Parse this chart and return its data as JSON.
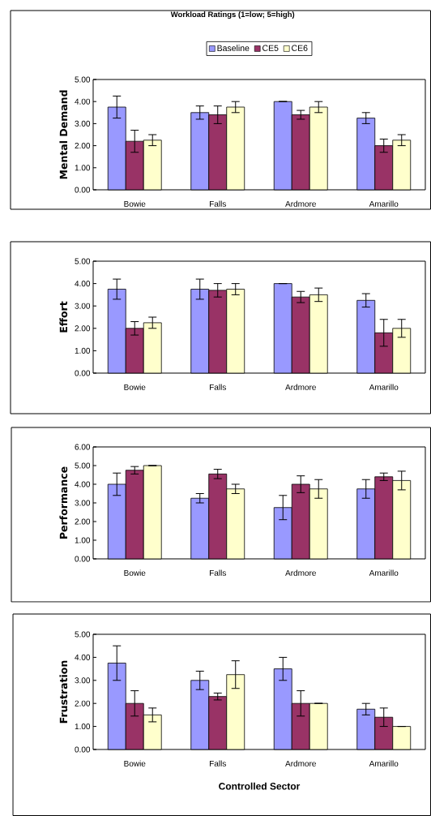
{
  "chart_data": [
    {
      "type": "bar",
      "title": "Workload Ratings (1=low; 5=high)",
      "ylabel": "Mental Demand",
      "categories": [
        "Bowie",
        "Falls",
        "Ardmore",
        "Amarillo"
      ],
      "legend": "top",
      "ylim": [
        0,
        5
      ],
      "yticks": [
        {
          "value": 0,
          "label": "0.00"
        },
        {
          "value": 1,
          "label": "1.00"
        },
        {
          "value": 2,
          "label": "2.00"
        },
        {
          "value": 3,
          "label": "3.00"
        },
        {
          "value": 4,
          "label": "4.00"
        },
        {
          "value": 5,
          "label": "5.00"
        }
      ],
      "series": [
        {
          "name": "Baseline",
          "color": "#9999ff",
          "values": [
            3.75,
            3.5,
            4.0,
            3.25
          ],
          "errors": [
            0.5,
            0.3,
            0,
            0.25
          ]
        },
        {
          "name": "CE5",
          "color": "#993366",
          "values": [
            2.2,
            3.4,
            3.4,
            2.0
          ],
          "errors": [
            0.5,
            0.4,
            0.2,
            0.3
          ]
        },
        {
          "name": "CE6",
          "color": "#ffffcc",
          "values": [
            2.25,
            3.75,
            3.75,
            2.25
          ],
          "errors": [
            0.25,
            0.25,
            0.25,
            0.25
          ]
        }
      ]
    },
    {
      "type": "bar",
      "ylabel": "Effort",
      "categories": [
        "Bowie",
        "Falls",
        "Ardmore",
        "Amarillo"
      ],
      "ylim": [
        0,
        5
      ],
      "yticks": [
        {
          "value": 0,
          "label": "0.00"
        },
        {
          "value": 1,
          "label": "1.00"
        },
        {
          "value": 2,
          "label": "2.00"
        },
        {
          "value": 3,
          "label": "3.00"
        },
        {
          "value": 4,
          "label": "4.00"
        },
        {
          "value": 5,
          "label": "5.00"
        }
      ],
      "series": [
        {
          "color": "#9999ff",
          "values": [
            3.75,
            3.75,
            4.0,
            3.25
          ],
          "errors": [
            0.45,
            0.45,
            0,
            0.3
          ]
        },
        {
          "color": "#993366",
          "values": [
            2.0,
            3.7,
            3.4,
            1.8
          ],
          "errors": [
            0.3,
            0.3,
            0.25,
            0.6
          ]
        },
        {
          "color": "#ffffcc",
          "values": [
            2.25,
            3.75,
            3.5,
            2.0
          ],
          "errors": [
            0.25,
            0.25,
            0.3,
            0.4
          ]
        }
      ]
    },
    {
      "type": "bar",
      "ylabel": "Performance",
      "categories": [
        "Bowie",
        "Falls",
        "Ardmore",
        "Amarillo"
      ],
      "ylim": [
        0,
        6
      ],
      "yticks": [
        {
          "value": 0,
          "label": "0.00"
        },
        {
          "value": 1,
          "label": "1.00"
        },
        {
          "value": 2,
          "label": "2.00"
        },
        {
          "value": 3,
          "label": "3.00"
        },
        {
          "value": 4,
          "label": "4.00"
        },
        {
          "value": 5,
          "label": "5.00"
        },
        {
          "value": 6,
          "label": "6.00"
        }
      ],
      "series": [
        {
          "color": "#9999ff",
          "values": [
            4.0,
            3.25,
            2.75,
            3.75
          ],
          "errors": [
            0.6,
            0.25,
            0.65,
            0.5
          ]
        },
        {
          "color": "#993366",
          "values": [
            4.75,
            4.55,
            4.0,
            4.4
          ],
          "errors": [
            0.2,
            0.25,
            0.45,
            0.2
          ]
        },
        {
          "color": "#ffffcc",
          "values": [
            5.0,
            3.75,
            3.75,
            4.2
          ],
          "errors": [
            0,
            0.25,
            0.5,
            0.5
          ]
        }
      ]
    },
    {
      "type": "bar",
      "ylabel": "Frustration",
      "xlabel": "Controlled Sector",
      "categories": [
        "Bowie",
        "Falls",
        "Ardmore",
        "Amarillo"
      ],
      "ylim": [
        0,
        5
      ],
      "yticks": [
        {
          "value": 0,
          "label": "0.00"
        },
        {
          "value": 1,
          "label": "1.00"
        },
        {
          "value": 2,
          "label": "2.00"
        },
        {
          "value": 3,
          "label": "3.00"
        },
        {
          "value": 4,
          "label": "4.00"
        },
        {
          "value": 5,
          "label": "5.00"
        }
      ],
      "series": [
        {
          "color": "#9999ff",
          "values": [
            3.75,
            3.0,
            3.5,
            1.75
          ],
          "errors": [
            0.75,
            0.4,
            0.5,
            0.25
          ]
        },
        {
          "color": "#993366",
          "values": [
            2.0,
            2.3,
            2.0,
            1.4
          ],
          "errors": [
            0.55,
            0.15,
            0.55,
            0.4
          ]
        },
        {
          "color": "#ffffcc",
          "values": [
            1.5,
            3.25,
            2.0,
            1.0
          ],
          "errors": [
            0.3,
            0.6,
            0,
            0
          ]
        }
      ]
    }
  ]
}
